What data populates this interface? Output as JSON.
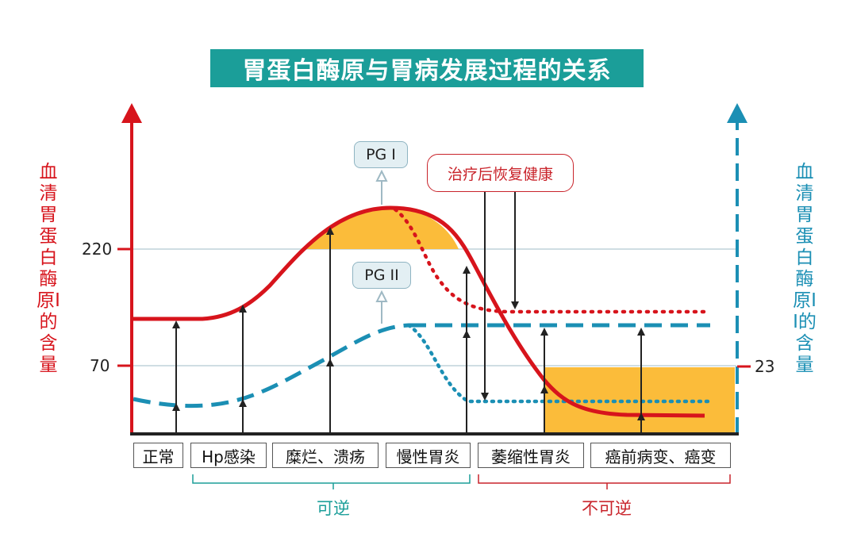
{
  "title": "胃蛋白酶原与胃病发展过程的关系",
  "axes": {
    "left_label": "血清胃蛋白酶原I的含量",
    "right_label": "血清胃蛋白酶原II的含量",
    "left_ticks": [
      "220",
      "70"
    ],
    "right_ticks": [
      "23"
    ]
  },
  "callouts": {
    "pg1": "PG I",
    "pg2": "PG II",
    "recovery": "治疗后恢复健康"
  },
  "stages": [
    "正常",
    "Hp感染",
    "糜烂、溃疡",
    "慢性胃炎",
    "萎缩性胃炎",
    "癌前病变、癌变"
  ],
  "regions": {
    "reversible": "可逆",
    "irreversible": "不可逆"
  },
  "colors": {
    "pg1": "#d7141c",
    "pg2": "#1b8fb4",
    "highlight": "#fbbc3a",
    "title_bg": "#1b9e99"
  }
}
